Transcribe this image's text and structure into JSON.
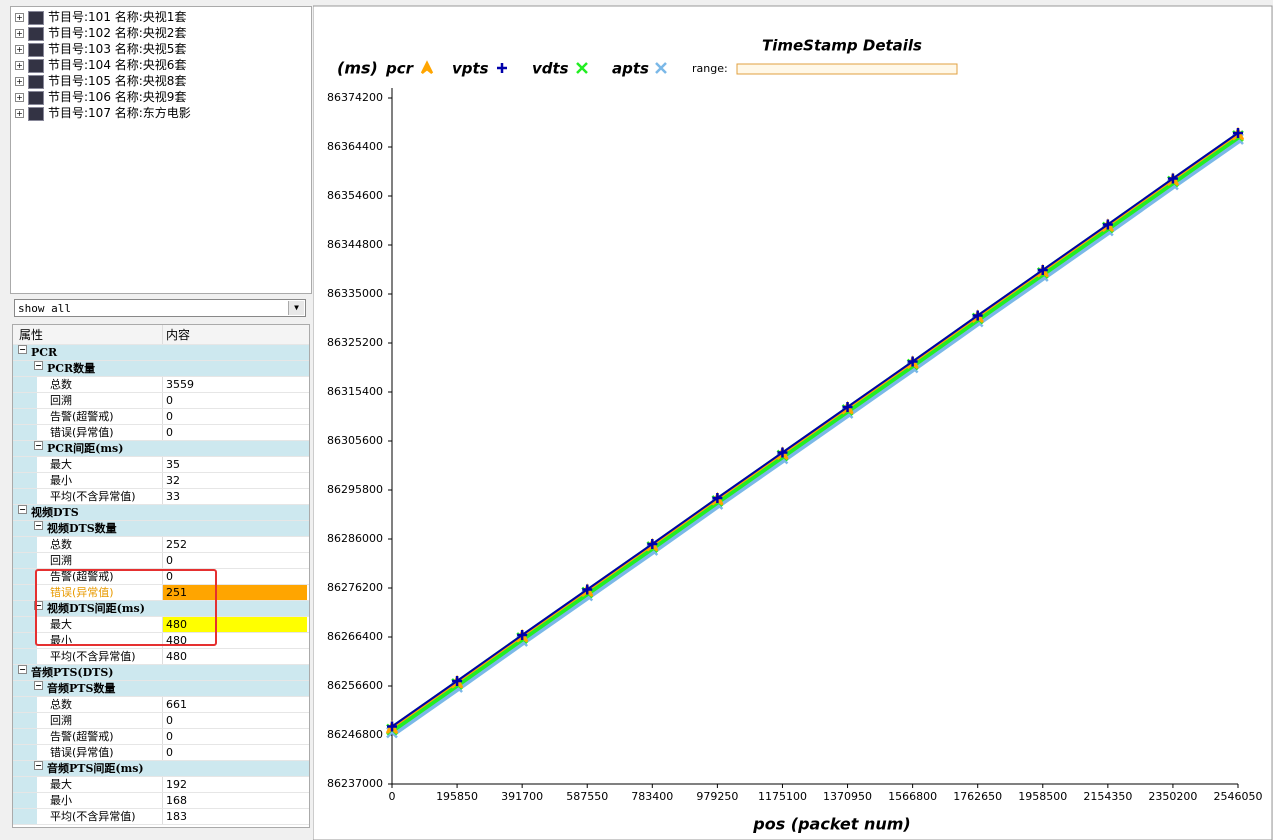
{
  "tree": {
    "programs": [
      "节目号:101 名称:央视1套",
      "节目号:102 名称:央视2套",
      "节目号:103 名称:央视5套",
      "节目号:104 名称:央视6套",
      "节目号:105 名称:央视8套",
      "节目号:106 名称:央视9套",
      "节目号:107 名称:东方电影"
    ]
  },
  "filter": "show all",
  "grid": {
    "headers": [
      "属性",
      "内容"
    ],
    "sections": [
      {
        "title": "PCR",
        "groups": [
          {
            "title": "PCR数量",
            "items": [
              {
                "name": "总数",
                "value": "3559"
              },
              {
                "name": "回溯",
                "value": "0"
              },
              {
                "name": "告警(超警戒)",
                "value": "0"
              },
              {
                "name": "错误(异常值)",
                "value": "0"
              }
            ]
          },
          {
            "title": "PCR间距(ms)",
            "items": [
              {
                "name": "最大",
                "value": "35"
              },
              {
                "name": "最小",
                "value": "32"
              },
              {
                "name": "平均(不含异常值)",
                "value": "33"
              }
            ]
          }
        ]
      },
      {
        "title": "视频DTS",
        "groups": [
          {
            "title": "视频DTS数量",
            "items": [
              {
                "name": "总数",
                "value": "252"
              },
              {
                "name": "回溯",
                "value": "0"
              },
              {
                "name": "告警(超警戒)",
                "value": "0"
              },
              {
                "name": "错误(异常值)",
                "value": "251",
                "highlight": "#ffa500",
                "name_color": "#e89a00"
              }
            ]
          },
          {
            "title": "视频DTS间距(ms)",
            "items": [
              {
                "name": "最大",
                "value": "480",
                "highlight": "#ffff00"
              },
              {
                "name": "最小",
                "value": "480"
              },
              {
                "name": "平均(不含异常值)",
                "value": "480"
              }
            ]
          }
        ]
      },
      {
        "title": "音频PTS(DTS)",
        "groups": [
          {
            "title": "音频PTS数量",
            "items": [
              {
                "name": "总数",
                "value": "661"
              },
              {
                "name": "回溯",
                "value": "0"
              },
              {
                "name": "告警(超警戒)",
                "value": "0"
              },
              {
                "name": "错误(异常值)",
                "value": "0"
              }
            ]
          },
          {
            "title": "音频PTS间距(ms)",
            "items": [
              {
                "name": "最大",
                "value": "192"
              },
              {
                "name": "最小",
                "value": "168"
              },
              {
                "name": "平均(不含异常值)",
                "value": "183"
              }
            ]
          }
        ]
      }
    ]
  },
  "chart_data": {
    "type": "line",
    "title": "TimeStamp Details",
    "y_unit": "(ms)",
    "x_label": "pos (packet num)",
    "range_label": "range:",
    "x": [
      0,
      195850,
      391700,
      587550,
      783400,
      979250,
      1175100,
      1370950,
      1566800,
      1762650,
      1958500,
      2154350,
      2350200,
      2546050
    ],
    "series": [
      {
        "name": "apts",
        "color": "#7ab8e8",
        "marker": "x",
        "values": [
          86247300,
          86256400,
          86265600,
          86274700,
          86283800,
          86293000,
          86302100,
          86311200,
          86320300,
          86329500,
          86338600,
          86347700,
          86356900,
          86366000
        ]
      },
      {
        "name": "vdts",
        "color": "#22ee22",
        "marker": "x",
        "values": [
          86247900,
          86257000,
          86266200,
          86275300,
          86284400,
          86293600,
          86302700,
          86311800,
          86320900,
          86330100,
          86339200,
          86348300,
          86357500,
          86366600
        ]
      },
      {
        "name": "pcr",
        "color": "#ffa500",
        "marker": "^",
        "values": [
          86248200,
          86257300,
          86266500,
          86275600,
          86284700,
          86293900,
          86303000,
          86312100,
          86321200,
          86330400,
          86339500,
          86348600,
          86357800,
          86366900
        ]
      },
      {
        "name": "vpts",
        "color": "#0000aa",
        "marker": "+",
        "values": [
          86248500,
          86257600,
          86266800,
          86275900,
          86285000,
          86294200,
          86303300,
          86312400,
          86321500,
          86330700,
          86339800,
          86348900,
          86358100,
          86367200
        ]
      }
    ],
    "legend_order": [
      2,
      3,
      1,
      0
    ],
    "xlim": [
      0,
      2546050
    ],
    "ylim": [
      86237000,
      86376200
    ],
    "xticks": [
      0,
      195850,
      391700,
      587550,
      783400,
      979250,
      1175100,
      1370950,
      1566800,
      1762650,
      1958500,
      2154350,
      2350200,
      2546050
    ],
    "yticks": [
      86237000,
      86246800,
      86256600,
      86266400,
      86276200,
      86286000,
      86295800,
      86305600,
      86315400,
      86325200,
      86335000,
      86344800,
      86354600,
      86364400,
      86374200
    ]
  }
}
